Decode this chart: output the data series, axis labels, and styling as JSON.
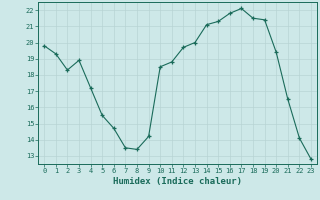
{
  "x": [
    0,
    1,
    2,
    3,
    4,
    5,
    6,
    7,
    8,
    9,
    10,
    11,
    12,
    13,
    14,
    15,
    16,
    17,
    18,
    19,
    20,
    21,
    22,
    23
  ],
  "y": [
    19.8,
    19.3,
    18.3,
    18.9,
    17.2,
    15.5,
    14.7,
    13.5,
    13.4,
    14.2,
    18.5,
    18.8,
    19.7,
    20.0,
    21.1,
    21.3,
    21.8,
    22.1,
    21.5,
    21.4,
    19.4,
    16.5,
    14.1,
    12.8
  ],
  "xlabel": "Humidex (Indice chaleur)",
  "xlim": [
    -0.5,
    23.5
  ],
  "ylim": [
    12.5,
    22.5
  ],
  "yticks": [
    13,
    14,
    15,
    16,
    17,
    18,
    19,
    20,
    21,
    22
  ],
  "xticks": [
    0,
    1,
    2,
    3,
    4,
    5,
    6,
    7,
    8,
    9,
    10,
    11,
    12,
    13,
    14,
    15,
    16,
    17,
    18,
    19,
    20,
    21,
    22,
    23
  ],
  "line_color": "#1a6b5a",
  "marker_color": "#1a6b5a",
  "bg_color": "#cde8e8",
  "grid_color": "#b8d4d4",
  "tick_color": "#1a6b5a",
  "label_color": "#1a6b5a"
}
